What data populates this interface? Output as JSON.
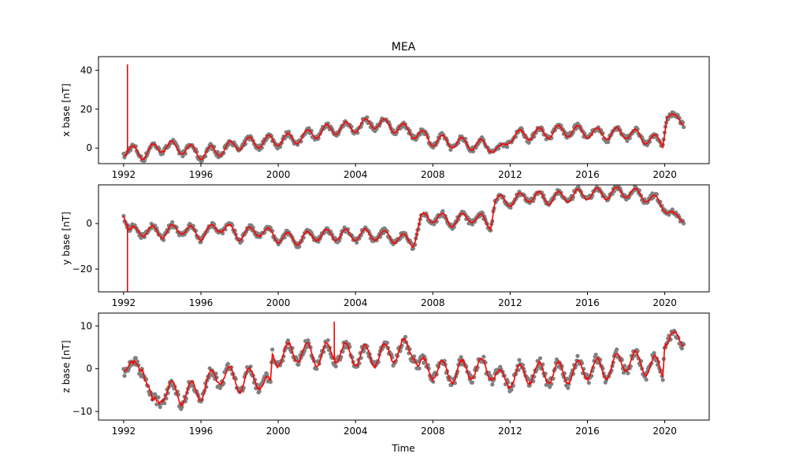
{
  "figure": {
    "title": "MEA",
    "xlabel": "Time"
  },
  "colors": {
    "points": "#808080",
    "line": "#ff0000",
    "axes": "#000000",
    "background": "#ffffff"
  },
  "chart_data": [
    {
      "type": "line",
      "title": "MEA",
      "xlabel": "",
      "ylabel": "x base [nT]",
      "xlim": [
        1990.7,
        2022.3
      ],
      "ylim": [
        -8,
        47
      ],
      "x_ticks": [
        1992,
        1996,
        2000,
        2004,
        2008,
        2012,
        2016,
        2020
      ],
      "y_ticks": [
        0,
        20,
        40
      ],
      "grid": false,
      "seasonal_amplitude": 3,
      "spike": {
        "x": 1992.2,
        "y": 43
      },
      "trend": [
        [
          1992.0,
          -1
        ],
        [
          1993.0,
          -3
        ],
        [
          1994.0,
          1
        ],
        [
          1995.0,
          0
        ],
        [
          1996.0,
          -3
        ],
        [
          1997.0,
          -1
        ],
        [
          1998.0,
          2
        ],
        [
          1999.0,
          3
        ],
        [
          2000.0,
          4
        ],
        [
          2001.0,
          5
        ],
        [
          2002.0,
          8
        ],
        [
          2003.0,
          10
        ],
        [
          2004.0,
          11
        ],
        [
          2005.0,
          13
        ],
        [
          2006.0,
          11
        ],
        [
          2007.0,
          8
        ],
        [
          2008.0,
          4
        ],
        [
          2009.0,
          3
        ],
        [
          2010.0,
          2
        ],
        [
          2011.0,
          1
        ],
        [
          2011.5,
          -2
        ],
        [
          2012.0,
          6
        ],
        [
          2013.0,
          7
        ],
        [
          2014.0,
          8
        ],
        [
          2015.0,
          9
        ],
        [
          2016.0,
          8
        ],
        [
          2017.0,
          7
        ],
        [
          2018.0,
          8
        ],
        [
          2019.0,
          5
        ],
        [
          2019.9,
          3
        ],
        [
          2020.1,
          18
        ],
        [
          2020.5,
          14
        ],
        [
          2021.0,
          15
        ]
      ],
      "series": [
        {
          "marker": "points",
          "color": "#808080"
        },
        {
          "marker": "line",
          "color": "#ff0000"
        }
      ]
    },
    {
      "type": "line",
      "title": "",
      "xlabel": "",
      "ylabel": "y base [nT]",
      "xlim": [
        1990.7,
        2022.3
      ],
      "ylim": [
        -30,
        17
      ],
      "x_ticks": [
        1992,
        1996,
        2000,
        2004,
        2008,
        2012,
        2016,
        2020
      ],
      "y_ticks": [
        -20,
        0
      ],
      "grid": false,
      "seasonal_amplitude": 2.5,
      "spike": {
        "x": 1992.2,
        "y": -30
      },
      "trend": [
        [
          1992.0,
          6
        ],
        [
          1992.3,
          -4
        ],
        [
          1993.0,
          -3
        ],
        [
          1994.0,
          -4
        ],
        [
          1995.0,
          -2
        ],
        [
          1996.0,
          -5
        ],
        [
          1997.0,
          -1
        ],
        [
          1998.0,
          -5
        ],
        [
          1999.0,
          -3
        ],
        [
          2000.0,
          -6
        ],
        [
          2001.0,
          -7
        ],
        [
          2002.0,
          -5
        ],
        [
          2003.0,
          -5
        ],
        [
          2004.0,
          -5
        ],
        [
          2005.0,
          -5
        ],
        [
          2006.0,
          -6
        ],
        [
          2007.0,
          -8
        ],
        [
          2007.4,
          2
        ],
        [
          2008.0,
          3
        ],
        [
          2009.0,
          1
        ],
        [
          2010.0,
          3
        ],
        [
          2011.0,
          0
        ],
        [
          2011.2,
          10
        ],
        [
          2012.0,
          10
        ],
        [
          2013.0,
          12
        ],
        [
          2014.0,
          11
        ],
        [
          2015.0,
          12
        ],
        [
          2016.0,
          13
        ],
        [
          2017.0,
          13
        ],
        [
          2018.0,
          14
        ],
        [
          2019.0,
          12
        ],
        [
          2020.0,
          8
        ],
        [
          2020.5,
          2
        ],
        [
          2021.0,
          3
        ]
      ],
      "series": [
        {
          "marker": "points",
          "color": "#808080"
        },
        {
          "marker": "line",
          "color": "#ff0000"
        }
      ]
    },
    {
      "type": "line",
      "title": "",
      "xlabel": "Time",
      "ylabel": "z base [nT]",
      "xlim": [
        1990.7,
        2022.3
      ],
      "ylim": [
        -12,
        13
      ],
      "x_ticks": [
        1992,
        1996,
        2000,
        2004,
        2008,
        2012,
        2016,
        2020
      ],
      "y_ticks": [
        -10,
        0,
        10
      ],
      "grid": false,
      "seasonal_amplitude": 2.5,
      "spike": {
        "x": 2002.9,
        "y": 11
      },
      "trend": [
        [
          1992.0,
          2
        ],
        [
          1992.5,
          -1
        ],
        [
          1993.0,
          2
        ],
        [
          1993.5,
          -10
        ],
        [
          1994.0,
          -5
        ],
        [
          1995.0,
          -6
        ],
        [
          1996.0,
          -5
        ],
        [
          1997.0,
          -1
        ],
        [
          1998.0,
          -3
        ],
        [
          1999.0,
          -2
        ],
        [
          1999.6,
          -5
        ],
        [
          1999.7,
          3
        ],
        [
          2000.0,
          3
        ],
        [
          2001.0,
          4
        ],
        [
          2002.0,
          3
        ],
        [
          2003.0,
          4
        ],
        [
          2004.0,
          3
        ],
        [
          2005.0,
          3
        ],
        [
          2006.0,
          4
        ],
        [
          2007.0,
          5
        ],
        [
          2007.3,
          0
        ],
        [
          2008.0,
          0
        ],
        [
          2009.0,
          -1
        ],
        [
          2010.0,
          0
        ],
        [
          2011.0,
          0
        ],
        [
          2011.5,
          -3
        ],
        [
          2012.0,
          -2
        ],
        [
          2013.0,
          -1
        ],
        [
          2014.0,
          -1
        ],
        [
          2015.0,
          -1
        ],
        [
          2016.0,
          0
        ],
        [
          2017.0,
          0
        ],
        [
          2018.0,
          2
        ],
        [
          2019.0,
          1
        ],
        [
          2019.9,
          0
        ],
        [
          2020.0,
          8
        ],
        [
          2020.5,
          6
        ],
        [
          2021.0,
          8
        ]
      ],
      "series": [
        {
          "marker": "points",
          "color": "#808080"
        },
        {
          "marker": "line",
          "color": "#ff0000"
        }
      ]
    }
  ]
}
